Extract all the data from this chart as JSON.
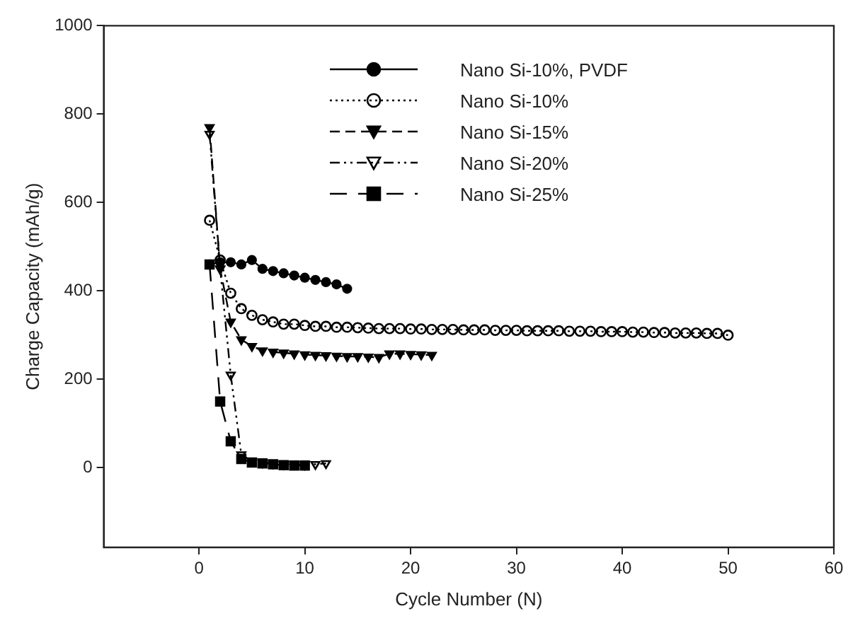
{
  "chart_data": {
    "type": "line",
    "xlabel": "Cycle Number (N)",
    "ylabel": "Charge Capacity (mAh/g)",
    "xlim": [
      -9,
      60
    ],
    "xticks": [
      0,
      10,
      20,
      30,
      40,
      50,
      60
    ],
    "ylim": [
      -180,
      1000
    ],
    "yticks": [
      0,
      200,
      400,
      600,
      800,
      1000
    ],
    "grid": false,
    "legend": "top right",
    "series": [
      {
        "name": "Nano Si-10%, PVDF",
        "color": "#000000",
        "marker": "circle",
        "line_style": "solid",
        "x": [
          1,
          2,
          3,
          4,
          5,
          6,
          7,
          8,
          9,
          10,
          11,
          12,
          13,
          14
        ],
        "values": [
          460,
          465,
          465,
          460,
          470,
          450,
          445,
          440,
          435,
          430,
          425,
          420,
          415,
          405
        ]
      },
      {
        "name": "Nano Si-10%",
        "color": "#000000",
        "marker": "circle",
        "line_style": "dotted",
        "x": [
          1,
          2,
          3,
          4,
          5,
          6,
          7,
          8,
          9,
          10,
          11,
          12,
          13,
          14,
          15,
          16,
          17,
          18,
          19,
          20,
          21,
          22,
          23,
          24,
          25,
          26,
          27,
          28,
          29,
          30,
          31,
          32,
          33,
          34,
          35,
          36,
          37,
          38,
          39,
          40,
          41,
          42,
          43,
          44,
          45,
          46,
          47,
          48,
          49,
          50
        ],
        "values": [
          560,
          470,
          395,
          360,
          345,
          335,
          330,
          325,
          325,
          322,
          320,
          320,
          318,
          318,
          317,
          316,
          315,
          315,
          315,
          314,
          314,
          313,
          313,
          313,
          312,
          312,
          312,
          311,
          311,
          311,
          310,
          310,
          310,
          310,
          309,
          309,
          309,
          308,
          308,
          308,
          307,
          307,
          306,
          306,
          305,
          305,
          305,
          304,
          304,
          300
        ]
      },
      {
        "name": "Nano Si-15%",
        "color": "#000000",
        "marker": "triangle",
        "line_style": "dashed",
        "x": [
          1,
          2,
          3,
          4,
          5,
          6,
          7,
          8,
          9,
          10,
          11,
          12,
          13,
          14,
          15,
          16,
          17,
          18,
          19,
          20,
          21,
          22
        ],
        "values": [
          770,
          450,
          330,
          290,
          275,
          265,
          262,
          260,
          258,
          256,
          255,
          254,
          253,
          252,
          252,
          251,
          250,
          258,
          258,
          257,
          256,
          255
        ]
      },
      {
        "name": "Nano Si-20%",
        "color": "#000000",
        "marker": "triangle",
        "line_style": "dashed",
        "x": [
          1,
          2,
          3,
          4,
          5,
          6,
          7,
          8,
          9,
          10,
          11,
          12
        ],
        "values": [
          755,
          450,
          210,
          30,
          15,
          12,
          10,
          8,
          8,
          7,
          8,
          10
        ]
      },
      {
        "name": "Nano Si-25%",
        "color": "#000000",
        "marker": "square",
        "line_style": "dashed",
        "x": [
          1,
          2,
          3,
          4,
          5,
          6,
          7,
          8,
          9,
          10
        ],
        "values": [
          460,
          150,
          60,
          20,
          12,
          10,
          8,
          6,
          5,
          5
        ]
      }
    ]
  }
}
